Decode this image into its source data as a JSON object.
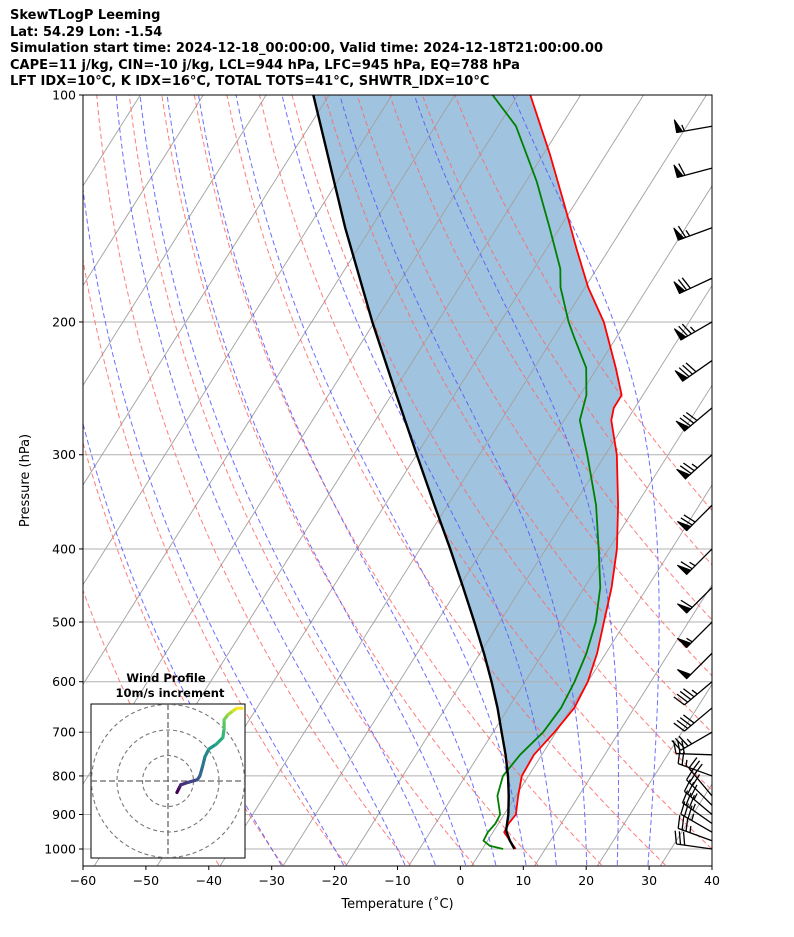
{
  "header": {
    "line1": "SkewTLogP Leeming",
    "line2": "Lat: 54.29   Lon: -1.54",
    "line3": "Simulation start time: 2024-12-18_00:00:00, Valid time: 2024-12-18T21:00:00.00",
    "line4": "CAPE=11 j/kg, CIN=-10 j/kg, LCL=944 hPa, LFC=945 hPa, EQ=788 hPa",
    "line5": "LFT IDX=10°C, K IDX=16°C, TOTAL TOTS=41°C, SHWTR_IDX=10°C"
  },
  "colors": {
    "temperature": "#ff0000",
    "dewpoint": "#008000",
    "parcel": "#000000",
    "shading": "#a0c4df",
    "dry_adiabat": "#ff6666",
    "moist_adiabat": "#5555ff",
    "isotherm": "#a0a0a0",
    "isobar": "#b0b0b0"
  },
  "chart_data": {
    "type": "line",
    "title": "SkewTLogP Leeming",
    "xlabel": "Temperature (˚C)",
    "ylabel": "Pressure (hPa)",
    "xlim": [
      -60,
      40
    ],
    "ylim": [
      1050,
      100
    ],
    "y_scale": "log",
    "grid": true,
    "x_ticks": [
      -60,
      -50,
      -40,
      -30,
      -20,
      -10,
      0,
      10,
      20,
      30,
      40
    ],
    "x_tick_labels": [
      "−60",
      "−50",
      "−40",
      "−30",
      "−20",
      "−10",
      "0",
      "10",
      "20",
      "30",
      "40"
    ],
    "y_ticks": [
      1000,
      900,
      800,
      700,
      600,
      500,
      400,
      300,
      200,
      100
    ],
    "y_tick_labels": [
      "1000",
      "900",
      "800",
      "700",
      "600",
      "500",
      "400",
      "300",
      "200",
      "100"
    ],
    "isotherms_C": [
      -150,
      -140,
      -130,
      -120,
      -110,
      -100,
      -90,
      -80,
      -70,
      -60,
      -50,
      -40,
      -30,
      -20,
      -10,
      0,
      10,
      20,
      30,
      40
    ],
    "dry_adiabats_C": [
      -40,
      -30,
      -20,
      -10,
      0,
      10,
      20,
      30,
      40,
      50,
      60,
      70,
      80,
      90,
      100
    ],
    "moist_adiabats_C": [
      -30,
      -20,
      -10,
      -5,
      0,
      5,
      10,
      15,
      20,
      25,
      30
    ],
    "series": [
      {
        "name": "temperature",
        "pressure": [
          1000,
          975,
          950,
          925,
          900,
          850,
          800,
          750,
          700,
          650,
          600,
          550,
          500,
          450,
          400,
          350,
          300,
          270,
          260,
          250,
          230,
          200,
          180,
          160,
          140,
          120,
          100
        ],
        "values": [
          8.8,
          7.0,
          5.2,
          5.0,
          5.2,
          3.6,
          2.1,
          1.8,
          2.7,
          3.3,
          2.7,
          1.2,
          -1.0,
          -3.4,
          -6.6,
          -11.0,
          -16.5,
          -21.0,
          -21.9,
          -22.0,
          -25.8,
          -32.5,
          -38.6,
          -44.5,
          -51.0,
          -58.6,
          -68.0
        ]
      },
      {
        "name": "dewpoint",
        "pressure": [
          1000,
          990,
          975,
          950,
          925,
          900,
          850,
          800,
          750,
          700,
          650,
          600,
          550,
          500,
          450,
          400,
          350,
          300,
          270,
          250,
          230,
          210,
          200,
          180,
          170,
          150,
          130,
          110,
          100
        ],
        "values": [
          6.8,
          4.3,
          2.8,
          2.6,
          2.9,
          2.7,
          0.3,
          -0.9,
          -0.4,
          0.9,
          1.2,
          0.6,
          -0.5,
          -2.3,
          -5.2,
          -9.5,
          -14.5,
          -21.2,
          -26.0,
          -27.6,
          -30.5,
          -35.5,
          -38.1,
          -43.0,
          -45.0,
          -51.0,
          -58.0,
          -67.0,
          -74.0
        ]
      },
      {
        "name": "parcel",
        "pressure": [
          1000,
          975,
          950,
          944,
          900,
          850,
          800,
          750,
          700,
          650,
          600,
          550,
          500,
          450,
          400,
          350,
          300,
          250,
          200,
          150,
          100
        ],
        "values": [
          8.6,
          7.0,
          5.6,
          5.3,
          4.0,
          2.1,
          -0.1,
          -2.7,
          -5.7,
          -8.9,
          -12.6,
          -16.8,
          -21.6,
          -27.0,
          -33.1,
          -40.2,
          -48.3,
          -57.8,
          -69.3,
          -83.5,
          -102.5
        ]
      }
    ],
    "wind_barbs": [
      {
        "pressure": 1000,
        "direction_deg": 278,
        "speed_kt": 30
      },
      {
        "pressure": 975,
        "direction_deg": 290,
        "speed_kt": 35
      },
      {
        "pressure": 950,
        "direction_deg": 300,
        "speed_kt": 35
      },
      {
        "pressure": 925,
        "direction_deg": 305,
        "speed_kt": 35
      },
      {
        "pressure": 900,
        "direction_deg": 310,
        "speed_kt": 35
      },
      {
        "pressure": 875,
        "direction_deg": 315,
        "speed_kt": 30
      },
      {
        "pressure": 850,
        "direction_deg": 320,
        "speed_kt": 30
      },
      {
        "pressure": 800,
        "direction_deg": 290,
        "speed_kt": 25
      },
      {
        "pressure": 750,
        "direction_deg": 272,
        "speed_kt": 30
      },
      {
        "pressure": 700,
        "direction_deg": 240,
        "speed_kt": 35
      },
      {
        "pressure": 650,
        "direction_deg": 230,
        "speed_kt": 40
      },
      {
        "pressure": 600,
        "direction_deg": 230,
        "speed_kt": 45
      },
      {
        "pressure": 550,
        "direction_deg": 225,
        "speed_kt": 50
      },
      {
        "pressure": 500,
        "direction_deg": 225,
        "speed_kt": 55
      },
      {
        "pressure": 450,
        "direction_deg": 225,
        "speed_kt": 60
      },
      {
        "pressure": 400,
        "direction_deg": 225,
        "speed_kt": 65
      },
      {
        "pressure": 350,
        "direction_deg": 225,
        "speed_kt": 70
      },
      {
        "pressure": 300,
        "direction_deg": 228,
        "speed_kt": 75
      },
      {
        "pressure": 260,
        "direction_deg": 230,
        "speed_kt": 80
      },
      {
        "pressure": 225,
        "direction_deg": 235,
        "speed_kt": 80
      },
      {
        "pressure": 200,
        "direction_deg": 240,
        "speed_kt": 75
      },
      {
        "pressure": 175,
        "direction_deg": 245,
        "speed_kt": 70
      },
      {
        "pressure": 150,
        "direction_deg": 250,
        "speed_kt": 65
      },
      {
        "pressure": 125,
        "direction_deg": 255,
        "speed_kt": 60
      },
      {
        "pressure": 110,
        "direction_deg": 260,
        "speed_kt": 55
      }
    ],
    "hodograph": {
      "title": "Wind Profile",
      "subtitle": "10m/s increment",
      "rings_ms": [
        10,
        20,
        30
      ],
      "colormap": "viridis",
      "points": [
        {
          "u": 3.5,
          "v": -4.5
        },
        {
          "u": 4.5,
          "v": -2.5
        },
        {
          "u": 5.0,
          "v": -1.5
        },
        {
          "u": 8.0,
          "v": -0.5
        },
        {
          "u": 11.5,
          "v": 0.5
        },
        {
          "u": 12.5,
          "v": 2.0
        },
        {
          "u": 13.5,
          "v": 5.5
        },
        {
          "u": 14.5,
          "v": 9.5
        },
        {
          "u": 16.0,
          "v": 12.5
        },
        {
          "u": 19.0,
          "v": 14.5
        },
        {
          "u": 21.5,
          "v": 17.0
        },
        {
          "u": 22.0,
          "v": 20.5
        },
        {
          "u": 22.0,
          "v": 24.0
        },
        {
          "u": 23.5,
          "v": 26.0
        },
        {
          "u": 25.5,
          "v": 27.5
        },
        {
          "u": 27.0,
          "v": 28.5
        },
        {
          "u": 29.0,
          "v": 28.5
        }
      ]
    }
  }
}
